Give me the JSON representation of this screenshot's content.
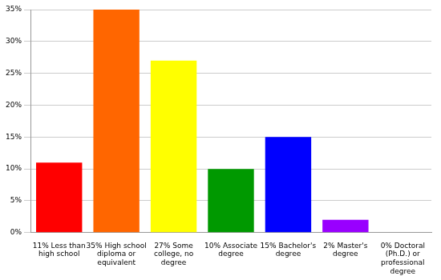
{
  "chart_data": {
    "type": "bar",
    "categories": [
      "11% Less than high school",
      "35% High school diploma or equivalent",
      "27% Some college, no degree",
      "10% Associate degree",
      "15% Bachelor's degree",
      "2% Master's degree",
      "0% Doctoral (Ph.D.) or professional degree"
    ],
    "values": [
      11,
      35,
      27,
      10,
      15,
      2,
      0
    ],
    "colors": [
      "#ff0000",
      "#ff6600",
      "#ffff00",
      "#009900",
      "#0000ff",
      "#9900ff",
      "#ff00ff"
    ],
    "ylim": [
      0,
      35
    ],
    "yticks": [
      {
        "value": 0,
        "label": "0%"
      },
      {
        "value": 5,
        "label": "5%"
      },
      {
        "value": 10,
        "label": "10%"
      },
      {
        "value": 15,
        "label": "15%"
      },
      {
        "value": 20,
        "label": "20%"
      },
      {
        "value": 25,
        "label": "25%"
      },
      {
        "value": 30,
        "label": "30%"
      },
      {
        "value": 35,
        "label": "35%"
      }
    ],
    "grid": true
  }
}
